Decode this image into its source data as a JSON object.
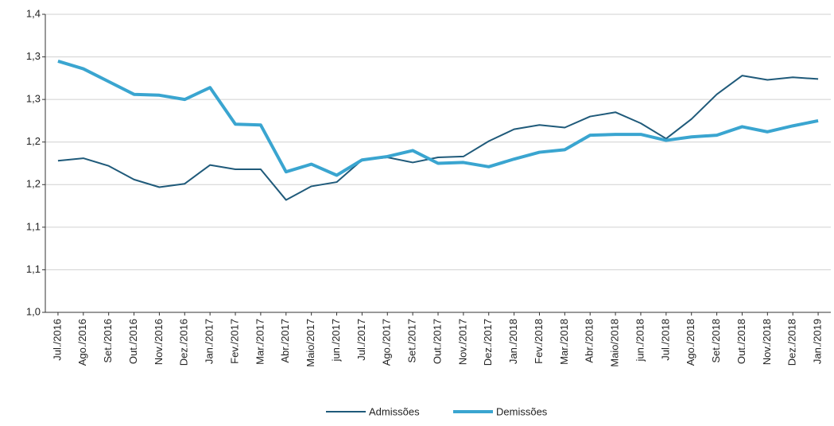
{
  "chart_data": {
    "type": "line",
    "categories": [
      "Jul./2016",
      "Ago./2016",
      "Set./2016",
      "Out./2016",
      "Nov./2016",
      "Dez./2016",
      "Jan./2017",
      "Fev./2017",
      "Mar./2017",
      "Abr./2017",
      "Maio/2017",
      "jun./2017",
      "Jul./2017",
      "Ago./2017",
      "Set./2017",
      "Out./2017",
      "Nov./2017",
      "Dez./2017",
      "Jan./2018",
      "Fev./2018",
      "Mar./2018",
      "Abr./2018",
      "Maio/2018",
      "jun./2018",
      "Jul./2018",
      "Ago./2018",
      "Set./2018",
      "Out./2018",
      "Nov./2018",
      "Dez./2018",
      "Jan./2019"
    ],
    "series": [
      {
        "name": "Admissões",
        "color": "#1f5a7a",
        "width": 2,
        "values": [
          1.178,
          1.181,
          1.172,
          1.156,
          1.147,
          1.151,
          1.173,
          1.168,
          1.168,
          1.132,
          1.148,
          1.153,
          1.179,
          1.182,
          1.176,
          1.182,
          1.183,
          1.201,
          1.215,
          1.22,
          1.217,
          1.23,
          1.235,
          1.222,
          1.204,
          1.227,
          1.256,
          1.278,
          1.273,
          1.276,
          1.274
        ]
      },
      {
        "name": "Demissões",
        "color": "#3aa5d0",
        "width": 4,
        "values": [
          1.295,
          1.286,
          1.271,
          1.256,
          1.255,
          1.25,
          1.264,
          1.221,
          1.22,
          1.165,
          1.174,
          1.161,
          1.179,
          1.183,
          1.19,
          1.175,
          1.176,
          1.171,
          1.18,
          1.188,
          1.191,
          1.208,
          1.209,
          1.209,
          1.202,
          1.206,
          1.208,
          1.218,
          1.212,
          1.219,
          1.225
        ]
      }
    ],
    "ylim": [
      1.0,
      1.35
    ],
    "yticks": [
      {
        "value": 1.0,
        "label": "1,0"
      },
      {
        "value": 1.05,
        "label": "1,1"
      },
      {
        "value": 1.1,
        "label": "1,1"
      },
      {
        "value": 1.15,
        "label": "1,2"
      },
      {
        "value": 1.2,
        "label": "1,2"
      },
      {
        "value": 1.25,
        "label": "1,3"
      },
      {
        "value": 1.3,
        "label": "1,3"
      },
      {
        "value": 1.35,
        "label": "1,4"
      }
    ],
    "grid": true
  }
}
